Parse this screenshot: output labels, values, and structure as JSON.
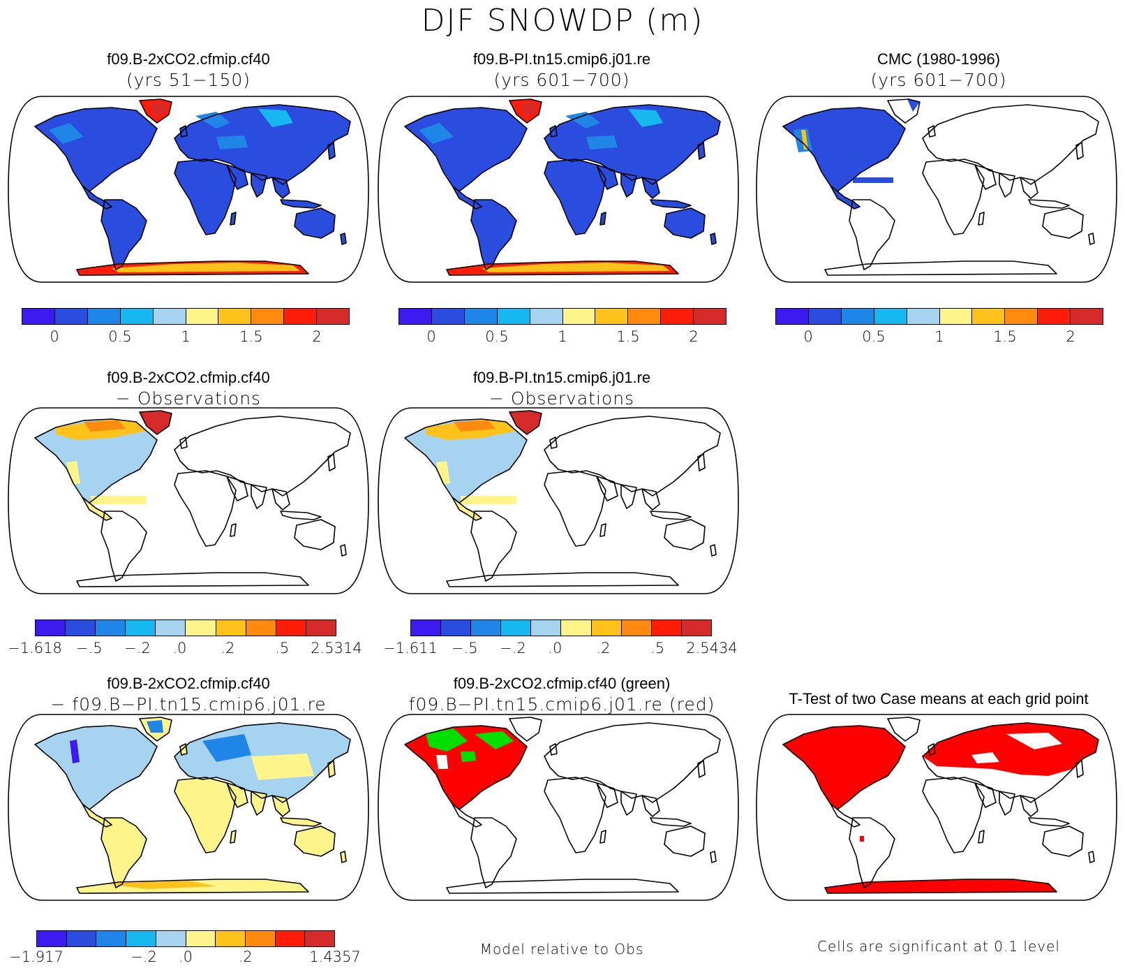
{
  "title": "DJF SNOWDP (m)",
  "colors": {
    "scale": [
      "#3d1af0",
      "#2a4de0",
      "#1f86e8",
      "#17b8f0",
      "#a5d3f0",
      "#fff58a",
      "#ffc21a",
      "#ff8a10",
      "#ff1d0a",
      "#d62a2a"
    ],
    "ocean": "#ffffff",
    "coast": "#000000",
    "sig_red": "#ff0000",
    "sig_green": "#00e000"
  },
  "panels": [
    {
      "title": "f09.B-2xCO2.cfmip.cf40",
      "subtitle": "(yrs 51−150)",
      "fill": "snow"
    },
    {
      "title": "f09.B-PI.tn15.cmip6.j01.re",
      "subtitle": "(yrs 601−700)",
      "fill": "snow"
    },
    {
      "title": "CMC (1980-1996)",
      "subtitle": "(yrs 601−700)",
      "fill": "obs"
    },
    {
      "title": "f09.B-2xCO2.cfmip.cf40",
      "subtitle": "− Observations",
      "fill": "diffobs"
    },
    {
      "title": "f09.B-PI.tn15.cmip6.j01.re",
      "subtitle": "− Observations",
      "fill": "diffobs"
    },
    {
      "title": "f09.B-2xCO2.cfmip.cf40",
      "subtitle": "− f09.B−PI.tn15.cmip6.j01.re",
      "fill": "diffcase"
    },
    {
      "title": "f09.B-2xCO2.cfmip.cf40 (green)",
      "subtitle": "f09.B−PI.tn15.cmip6.j01.re (red)",
      "fill": "relobs"
    },
    {
      "title": "T-Test of two Case means at each grid point",
      "subtitle": "",
      "fill": "ttest"
    }
  ],
  "colorbars": [
    {
      "labels": [
        "0",
        "0.5",
        "1",
        "1.5",
        "2"
      ]
    },
    {
      "labels": [
        "0",
        "0.5",
        "1",
        "1.5",
        "2"
      ]
    },
    {
      "labels": [
        "0",
        "0.5",
        "1",
        "1.5",
        "2"
      ]
    },
    {
      "labels": [
        "−1.618",
        "−.5",
        "−.2",
        ".0",
        ".2",
        ".5",
        "2.5314"
      ]
    },
    {
      "labels": [
        "−1.611",
        "−.5",
        "−.2",
        ".0",
        ".2",
        ".5",
        "2.5434"
      ]
    },
    {
      "labels": [
        "−1.917",
        "−.2",
        ".0",
        ".2",
        "1.4357"
      ]
    }
  ],
  "notes": {
    "model_relative": "Model relative to Obs",
    "significance": "Cells are significant at 0.1 level"
  }
}
